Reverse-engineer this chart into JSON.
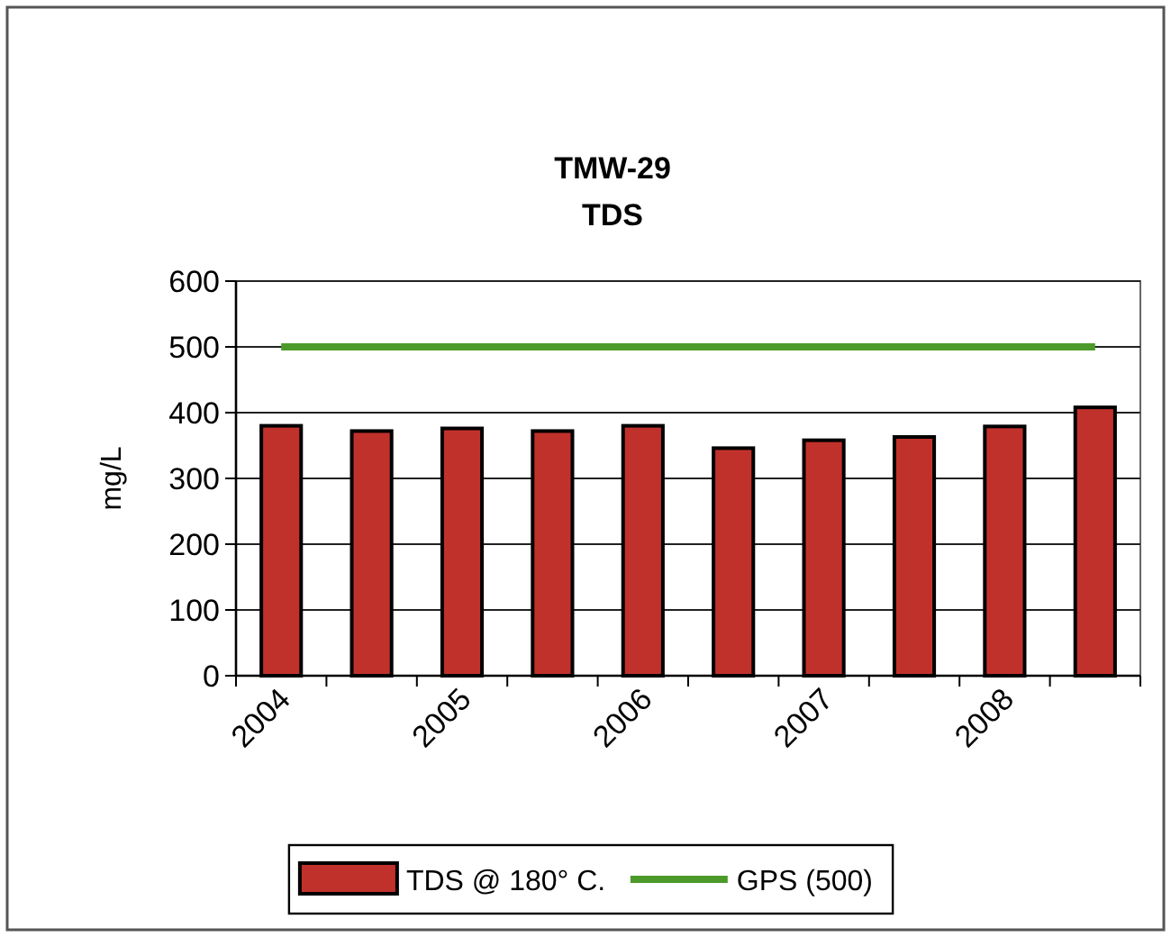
{
  "chart_data": {
    "type": "bar",
    "title": "TMW-29",
    "subtitle": "TDS",
    "ylabel": "mg/L",
    "categories": [
      "2004",
      null,
      "2005",
      null,
      "2006",
      null,
      "2007",
      null,
      "2008",
      null
    ],
    "series": [
      {
        "name": "TDS @ 180° C.",
        "color": "#c1312b",
        "values": [
          380,
          372,
          376,
          372,
          380,
          346,
          358,
          363,
          379,
          408
        ]
      },
      {
        "name": "GPS (500)",
        "type": "line",
        "color": "#4c9a2a",
        "values": [
          500,
          500,
          500,
          500,
          500,
          500,
          500,
          500,
          500,
          500
        ]
      }
    ],
    "ylim": [
      0,
      600
    ],
    "yticks": [
      0,
      100,
      200,
      300,
      400,
      500,
      600
    ],
    "grid": "y",
    "legend": "bottom"
  }
}
